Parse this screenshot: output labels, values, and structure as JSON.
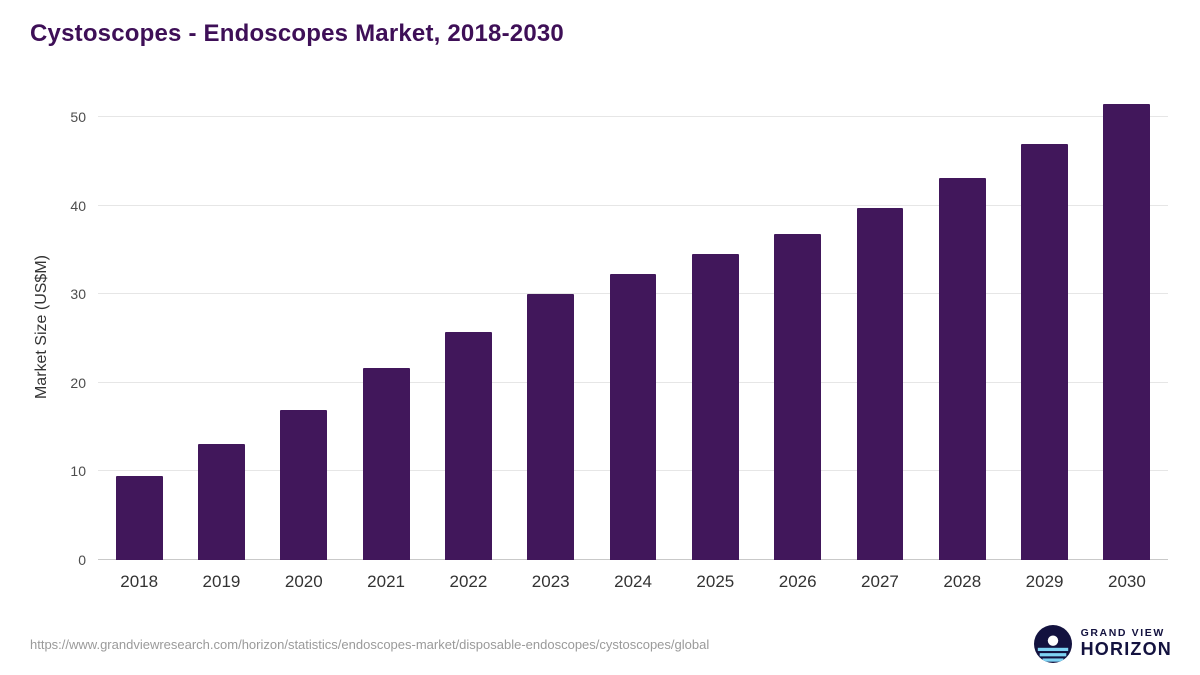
{
  "title": "Cystoscopes - Endoscopes Market, 2018-2030",
  "chart_data": {
    "type": "bar",
    "title": "Cystoscopes - Endoscopes Market, 2018-2030",
    "categories": [
      "2018",
      "2019",
      "2020",
      "2021",
      "2022",
      "2023",
      "2024",
      "2025",
      "2026",
      "2027",
      "2028",
      "2029",
      "2030"
    ],
    "values": [
      9.5,
      13.1,
      16.9,
      21.7,
      25.8,
      30.0,
      32.3,
      34.5,
      36.8,
      39.7,
      43.1,
      47.0,
      51.5
    ],
    "xlabel": "",
    "ylabel": "Market Size (US$M)",
    "ylim": [
      0,
      52.5
    ],
    "yticks": [
      0,
      10,
      20,
      30,
      40,
      50
    ],
    "grid": true,
    "legend": false,
    "bar_color": "#41175b"
  },
  "footer": {
    "source_url": "https://www.grandviewresearch.com/horizon/statistics/endoscopes-market/disposable-endoscopes/cystoscopes/global",
    "logo": {
      "icon": "horizon-sun-icon",
      "text_top": "GRAND VIEW",
      "text_bottom": "HORIZON"
    }
  },
  "colors": {
    "title": "#3e0f57",
    "bar": "#41175b",
    "gridline": "#e6e6e6",
    "axis_text": "#333333",
    "url_text": "#9a9a9a",
    "logo_navy": "#13123f",
    "logo_blue": "#7fd3f3"
  }
}
